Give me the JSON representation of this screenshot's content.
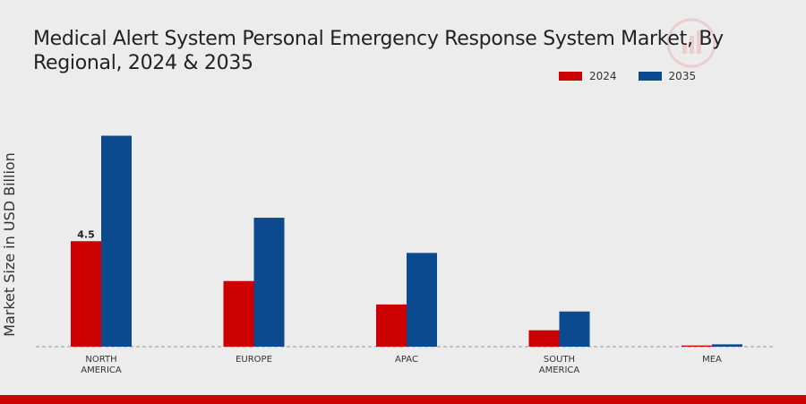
{
  "chart_data": {
    "type": "bar",
    "title": "Medical Alert System Personal Emergency Response System Market, By Regional, 2024 & 2035",
    "ylabel": "Market Size in USD Billion",
    "xlabel": "",
    "categories": [
      "NORTH AMERICA",
      "EUROPE",
      "APAC",
      "SOUTH AMERICA",
      "MEA"
    ],
    "category_lines": [
      [
        "NORTH",
        "AMERICA"
      ],
      [
        "EUROPE"
      ],
      [
        "APAC"
      ],
      [
        "SOUTH",
        "AMERICA"
      ],
      [
        "MEA"
      ]
    ],
    "series": [
      {
        "name": "2024",
        "color": "#cc0000",
        "values": [
          4.5,
          2.8,
          1.8,
          0.7,
          0.05
        ]
      },
      {
        "name": "2035",
        "color": "#0b4a8f",
        "values": [
          9.0,
          5.5,
          4.0,
          1.5,
          0.1
        ]
      }
    ],
    "data_labels": [
      {
        "series": 0,
        "index": 0,
        "text": "4.5"
      }
    ],
    "ylim": [
      0,
      12
    ],
    "grid": false,
    "legend_position": "top-right"
  }
}
